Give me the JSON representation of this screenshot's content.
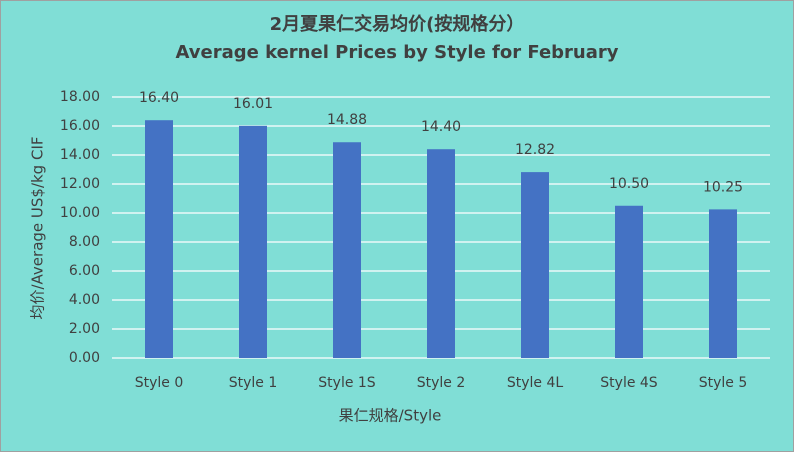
{
  "chart_data": {
    "type": "bar",
    "title": "2月夏果仁交易均价(按规格分）",
    "subtitle": "Average kernel Prices by Style for February",
    "x_label": "果仁规格/Style",
    "y_label": "均价/Average US$/kg CIF",
    "categories": [
      "Style 0",
      "Style 1",
      "Style 1S",
      "Style 2",
      "Style 4L",
      "Style 4S",
      "Style 5"
    ],
    "values": [
      16.4,
      16.01,
      14.88,
      14.4,
      12.82,
      10.5,
      10.25
    ],
    "value_labels": [
      "16.40",
      "16.01",
      "14.88",
      "14.40",
      "12.82",
      "10.50",
      "10.25"
    ],
    "color": "#4472c4",
    "ylim": [
      0,
      18
    ],
    "yticks": [
      {
        "value": 0,
        "label": "0.00"
      },
      {
        "value": 2,
        "label": "2.00"
      },
      {
        "value": 4,
        "label": "4.00"
      },
      {
        "value": 6,
        "label": "6.00"
      },
      {
        "value": 8,
        "label": "8.00"
      },
      {
        "value": 10,
        "label": "10.00"
      },
      {
        "value": 12,
        "label": "12.00"
      },
      {
        "value": 14,
        "label": "14.00"
      },
      {
        "value": 16,
        "label": "16.00"
      },
      {
        "value": 18,
        "label": "18.00"
      }
    ],
    "grid": true
  }
}
